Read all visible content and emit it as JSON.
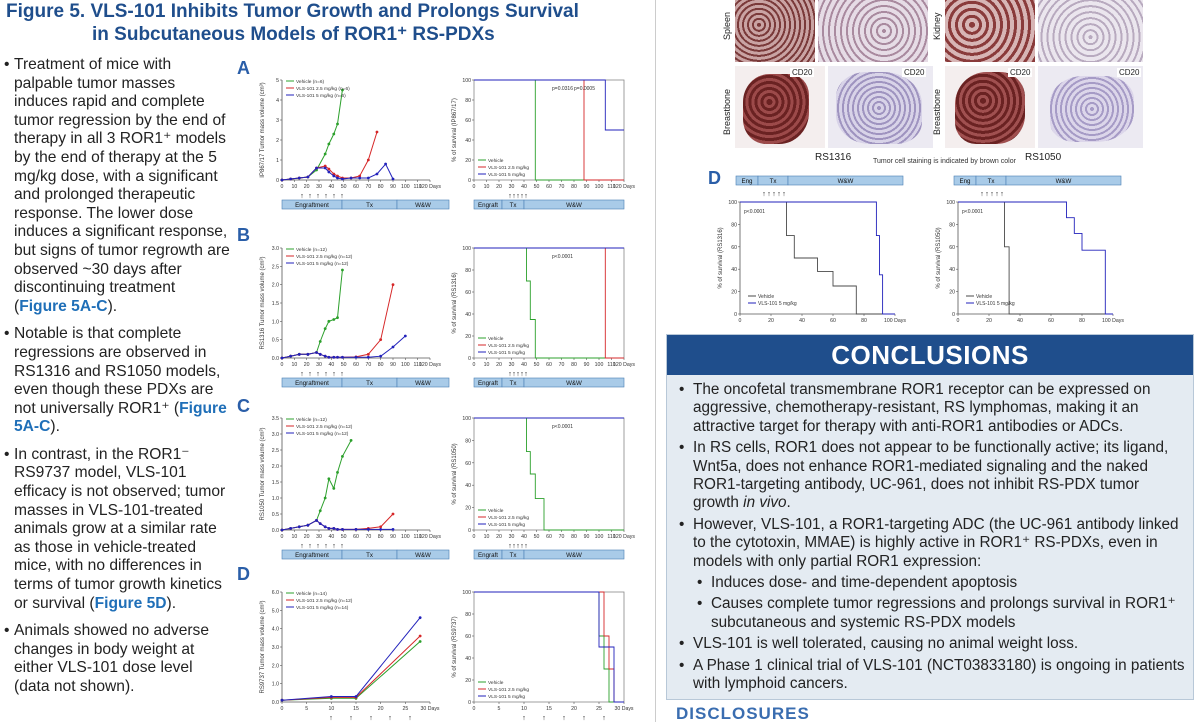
{
  "title": {
    "line1": "Figure 5. VLS-101 Inhibits Tumor Growth and Prolongs Survival",
    "line2": "in Subcutaneous Models of ROR1⁺ RS-PDXs"
  },
  "bullets": [
    {
      "text": "Treatment of mice with palpable tumor masses induces rapid and complete tumor regression by the end of therapy in all 3 ROR1⁺ models by the end of therapy at the 5 mg/kg dose, with a significant and prolonged therapeutic response. The lower dose induces a significant response, but signs of tumor regrowth are observed ~30 days after discontinuing treatment (",
      "ref": "Figure 5A-C",
      "tail": ")."
    },
    {
      "text": "Notable is that complete regressions are observed in RS1316 and RS1050 models, even though these PDXs are not universally ROR1⁺ (",
      "ref": "Figure 5A-C",
      "tail": ")."
    },
    {
      "text": "In contrast, in the ROR1⁻ RS9737 model, VLS-101 efficacy is not observed; tumor masses in VLS-101-treated animals grow at a similar rate as those in vehicle-treated mice, with no differences in terms of tumor growth kinetics or survival (",
      "ref": "Figure 5D",
      "tail": ")."
    },
    {
      "text": "Animals showed no adverse changes in body weight at either VLS-101 dose level (data not shown).",
      "ref": "",
      "tail": ""
    }
  ],
  "panels": {
    "A": {
      "letter": "A",
      "ylabel": "IP867/17 Tumor mass volume (cm³)",
      "surv_ylabel": "% of survival (IP867/17)",
      "legend": [
        "Vehicle (n=6)",
        "VLS-101 2.5 mg/kg (n=6)",
        "VLS-101 5 mg/kg (n=6)"
      ],
      "yticks": [
        "0",
        "1",
        "2",
        "3",
        "4",
        "5"
      ],
      "pvals": [
        "p=0.0316",
        "p=0.0005"
      ],
      "phases": [
        "Engraftment",
        "Tx",
        "W&W"
      ],
      "surv_phases": [
        "Engraft",
        "Tx",
        "W&W"
      ]
    },
    "B": {
      "letter": "B",
      "ylabel": "RS1316 Tumor mass volume (cm³)",
      "surv_ylabel": "% of survival (RS1316)",
      "legend": [
        "Vehicle (n=12)",
        "VLS-101 2.5 mg/kg (n=12)",
        "VLS-101 5 mg/kg (n=12)"
      ],
      "yticks": [
        "0.0",
        "0.5",
        "1.0",
        "1.5",
        "2.0",
        "2.5",
        "3.0"
      ],
      "pvals": [
        "p<0.0001"
      ],
      "phases": [
        "Engraftment",
        "Tx",
        "W&W"
      ],
      "surv_phases": [
        "Engraft",
        "Tx",
        "W&W"
      ]
    },
    "C": {
      "letter": "C",
      "ylabel": "RS1050 Tumor mass volume (cm³)",
      "surv_ylabel": "% of survival (RS1050)",
      "legend": [
        "Vehicle (n=12)",
        "VLS-101 2.5 mg/kg (n=12)",
        "VLS-101 5 mg/kg (n=12)"
      ],
      "yticks": [
        "0.0",
        "0.5",
        "1.0",
        "1.5",
        "2.0",
        "2.5",
        "3.0",
        "3.5"
      ],
      "pvals": [
        "p<0.0001"
      ],
      "phases": [
        "Engraftment",
        "Tx",
        "W&W"
      ],
      "surv_phases": [
        "Engraft",
        "Tx",
        "W&W"
      ]
    },
    "D": {
      "letter": "D",
      "ylabel": "RS9737 Tumor mass volume (cm³)",
      "surv_ylabel": "% of survival (RS9737)",
      "legend": [
        "Vehicle (n=14)",
        "VLS-101 2.5 mg/kg (n=12)",
        "VLS-101 5 mg/kg (n=14)"
      ],
      "yticks": [
        "0.0",
        "1.0",
        "2.0",
        "3.0",
        "4.0",
        "5.0",
        "6.0"
      ],
      "pvals": []
    }
  },
  "surv_legend": [
    "Vehicle",
    "VLS-101 2.5 mg/kg",
    "VLS-101 5 mg/kg"
  ],
  "xticks_main": [
    "0",
    "10",
    "20",
    "30",
    "40",
    "50",
    "60",
    "70",
    "80",
    "90",
    "100",
    "110",
    "120 Days"
  ],
  "xticks_d": [
    "0",
    "5",
    "10",
    "15",
    "20",
    "25",
    "30 Days"
  ],
  "ihc": {
    "tissues": [
      "Spleen",
      "Kidney",
      "Breastbone",
      "Breastbone"
    ],
    "marker": "CD20",
    "models": [
      "RS1316",
      "RS1050"
    ],
    "caption": "Tumor cell staining is indicated by brown color"
  },
  "systemic": {
    "letter": "D",
    "phases": [
      "Eng",
      "Tx",
      "W&W"
    ],
    "ylabels": [
      "% of survival (RS1316)",
      "% of survival (RS1050)"
    ],
    "pval": "p<0.0001",
    "legend": [
      "Vehicle",
      "VLS-101 5 mg/kg"
    ],
    "xticks": [
      "0",
      "20",
      "40",
      "60",
      "80",
      "100 Days"
    ],
    "yticks": [
      "0",
      "20",
      "40",
      "60",
      "80",
      "100"
    ]
  },
  "conclusions": {
    "heading": "CONCLUSIONS",
    "items": [
      {
        "text": "The oncofetal transmembrane ROR1 receptor can be expressed on aggressive, chemotherapy-resistant, RS lymphomas, making it an attractive target for therapy with anti-ROR1 antibodies or ADCs.",
        "sub": false
      },
      {
        "text": "In RS cells, ROR1 does not appear to be functionally active; its ligand, Wnt5a, does not enhance ROR1-mediated signaling and the naked ROR1-targeting antibody, UC-961, does not inhibit RS-PDX tumor growth ",
        "em": "in vivo",
        "tail": ".",
        "sub": false
      },
      {
        "text": "However, VLS-101, a ROR1-targeting ADC (the UC-961 antibody linked to the cytotoxin, MMAE) is highly active in ROR1⁺ RS-PDXs, even in models with only partial ROR1 expression:",
        "sub": false
      },
      {
        "text": "Induces dose- and time-dependent apoptosis",
        "sub": true
      },
      {
        "text": "Causes complete tumor regressions and prolongs survival in ROR1⁺ subcutaneous and systemic RS-PDX models",
        "sub": true
      },
      {
        "text": "VLS-101 is well tolerated, causing no animal weight loss.",
        "sub": false
      },
      {
        "text": "A Phase 1 clinical trial of VLS-101 (NCT03833180) is ongoing in patients with lymphoid cancers.",
        "sub": false
      }
    ]
  },
  "disclosures": "DISCLOSURES",
  "colors": {
    "vehicle": "#2ca02c",
    "low": "#d62728",
    "high": "#2222bb",
    "title": "#1f4e8c",
    "phase": "#a9cbe8"
  },
  "chart_data": [
    {
      "type": "line",
      "title": "",
      "ylabel": "IP867/17 Tumor mass volume (cm³)",
      "xlabel": "Days",
      "ylim": [
        0,
        5
      ],
      "xlim": [
        0,
        120
      ],
      "series": [
        {
          "name": "Vehicle (n=6)",
          "x": [
            0,
            7,
            14,
            21,
            28,
            35,
            38,
            42,
            45,
            49
          ],
          "y": [
            0,
            0.05,
            0.1,
            0.15,
            0.5,
            1.3,
            1.8,
            2.3,
            2.8,
            4.5
          ]
        },
        {
          "name": "VLS-101 2.5 mg/kg (n=6)",
          "x": [
            0,
            7,
            14,
            21,
            28,
            35,
            38,
            42,
            45,
            49,
            56,
            63,
            70,
            77
          ],
          "y": [
            0,
            0.05,
            0.1,
            0.15,
            0.6,
            0.7,
            0.55,
            0.3,
            0.2,
            0.1,
            0.1,
            0.2,
            1.0,
            2.4
          ]
        },
        {
          "name": "VLS-101 5 mg/kg (n=6)",
          "x": [
            0,
            7,
            14,
            21,
            28,
            35,
            38,
            42,
            45,
            49,
            56,
            63,
            70,
            77,
            84,
            90
          ],
          "y": [
            0,
            0.05,
            0.1,
            0.15,
            0.6,
            0.6,
            0.4,
            0.2,
            0.1,
            0.05,
            0.1,
            0.1,
            0.1,
            0.3,
            0.8,
            0.05
          ]
        }
      ]
    },
    {
      "type": "line",
      "title": "",
      "ylabel": "% of survival (IP867/17)",
      "xlabel": "Days",
      "ylim": [
        0,
        100
      ],
      "xlim": [
        0,
        120
      ],
      "series": [
        {
          "name": "Vehicle",
          "x": [
            0,
            49,
            49,
            120
          ],
          "y": [
            100,
            100,
            0,
            0
          ]
        },
        {
          "name": "VLS-101 2.5 mg/kg",
          "x": [
            0,
            88,
            88,
            120
          ],
          "y": [
            100,
            100,
            0,
            0
          ]
        },
        {
          "name": "VLS-101 5 mg/kg",
          "x": [
            0,
            105,
            105,
            120
          ],
          "y": [
            100,
            100,
            50,
            50
          ]
        }
      ]
    },
    {
      "type": "line",
      "title": "",
      "ylabel": "RS1316 Tumor mass volume (cm³)",
      "xlabel": "Days",
      "ylim": [
        0,
        3
      ],
      "xlim": [
        0,
        120
      ],
      "series": [
        {
          "name": "Vehicle (n=12)",
          "x": [
            0,
            7,
            14,
            21,
            28,
            31,
            35,
            38,
            42,
            45,
            49
          ],
          "y": [
            0,
            0.05,
            0.1,
            0.1,
            0.15,
            0.45,
            0.8,
            1.0,
            1.05,
            1.1,
            2.4
          ]
        },
        {
          "name": "VLS-101 2.5 mg/kg (n=12)",
          "x": [
            0,
            7,
            14,
            21,
            28,
            31,
            35,
            38,
            42,
            45,
            49,
            60,
            70,
            80,
            90
          ],
          "y": [
            0,
            0.05,
            0.1,
            0.1,
            0.15,
            0.1,
            0.05,
            0.02,
            0.02,
            0.02,
            0.02,
            0.03,
            0.1,
            0.5,
            2.0
          ]
        },
        {
          "name": "VLS-101 5 mg/kg (n=12)",
          "x": [
            0,
            7,
            14,
            21,
            28,
            31,
            35,
            38,
            42,
            45,
            49,
            60,
            70,
            80,
            90,
            100
          ],
          "y": [
            0,
            0.05,
            0.1,
            0.1,
            0.15,
            0.1,
            0.05,
            0.02,
            0.02,
            0.02,
            0.02,
            0.02,
            0.02,
            0.05,
            0.3,
            0.6
          ]
        }
      ]
    },
    {
      "type": "line",
      "title": "",
      "ylabel": "% of survival (RS1316)",
      "xlabel": "Days",
      "ylim": [
        0,
        100
      ],
      "xlim": [
        0,
        120
      ],
      "series": [
        {
          "name": "Vehicle",
          "x": [
            0,
            42,
            42,
            45,
            45,
            49,
            49,
            120
          ],
          "y": [
            100,
            100,
            70,
            70,
            35,
            35,
            0,
            0
          ]
        },
        {
          "name": "VLS-101 2.5 mg/kg",
          "x": [
            0,
            105,
            105,
            120
          ],
          "y": [
            100,
            100,
            0,
            0
          ]
        },
        {
          "name": "VLS-101 5 mg/kg",
          "x": [
            0,
            120
          ],
          "y": [
            100,
            100
          ]
        }
      ]
    },
    {
      "type": "line",
      "title": "",
      "ylabel": "RS1050 Tumor mass volume (cm³)",
      "xlabel": "Days",
      "ylim": [
        0,
        3.5
      ],
      "xlim": [
        0,
        120
      ],
      "series": [
        {
          "name": "Vehicle (n=12)",
          "x": [
            0,
            7,
            14,
            21,
            28,
            31,
            35,
            38,
            42,
            45,
            49,
            56
          ],
          "y": [
            0,
            0.05,
            0.1,
            0.15,
            0.3,
            0.6,
            1.0,
            1.6,
            1.3,
            1.8,
            2.3,
            2.8
          ]
        },
        {
          "name": "VLS-101 2.5 mg/kg (n=12)",
          "x": [
            0,
            7,
            14,
            21,
            28,
            31,
            35,
            38,
            42,
            45,
            49,
            60,
            70,
            80,
            90
          ],
          "y": [
            0,
            0.05,
            0.1,
            0.15,
            0.3,
            0.2,
            0.1,
            0.05,
            0.05,
            0.02,
            0.02,
            0.02,
            0.05,
            0.1,
            0.5
          ]
        },
        {
          "name": "VLS-101 5 mg/kg (n=12)",
          "x": [
            0,
            7,
            14,
            21,
            28,
            31,
            35,
            38,
            42,
            45,
            49,
            60,
            70,
            80,
            90
          ],
          "y": [
            0,
            0.05,
            0.1,
            0.15,
            0.3,
            0.2,
            0.1,
            0.05,
            0.05,
            0.02,
            0.02,
            0.02,
            0.02,
            0.02,
            0.02
          ]
        }
      ]
    },
    {
      "type": "line",
      "title": "",
      "ylabel": "% of survival (RS1050)",
      "xlabel": "Days",
      "ylim": [
        0,
        100
      ],
      "xlim": [
        0,
        120
      ],
      "series": [
        {
          "name": "Vehicle",
          "x": [
            0,
            42,
            42,
            45,
            45,
            49,
            49,
            56,
            56,
            120
          ],
          "y": [
            100,
            100,
            70,
            70,
            50,
            50,
            28,
            28,
            0,
            0
          ]
        },
        {
          "name": "VLS-101 2.5 mg/kg",
          "x": [
            0,
            120
          ],
          "y": [
            100,
            100
          ]
        },
        {
          "name": "VLS-101 5 mg/kg",
          "x": [
            0,
            120
          ],
          "y": [
            100,
            100
          ]
        }
      ]
    },
    {
      "type": "line",
      "title": "",
      "ylabel": "RS9737 Tumor mass volume (cm³)",
      "xlabel": "Days",
      "ylim": [
        0,
        6
      ],
      "xlim": [
        0,
        30
      ],
      "series": [
        {
          "name": "Vehicle (n=14)",
          "x": [
            0,
            10,
            15,
            28
          ],
          "y": [
            0.1,
            0.2,
            0.2,
            3.3
          ]
        },
        {
          "name": "VLS-101 2.5 mg/kg (n=12)",
          "x": [
            0,
            10,
            15,
            28
          ],
          "y": [
            0.1,
            0.25,
            0.25,
            3.6
          ]
        },
        {
          "name": "VLS-101 5 mg/kg (n=14)",
          "x": [
            0,
            10,
            15,
            28
          ],
          "y": [
            0.1,
            0.3,
            0.3,
            4.6
          ]
        }
      ]
    },
    {
      "type": "line",
      "title": "",
      "ylabel": "% of survival (RS9737)",
      "xlabel": "Days",
      "ylim": [
        0,
        100
      ],
      "xlim": [
        0,
        30
      ],
      "series": [
        {
          "name": "Vehicle",
          "x": [
            0,
            25,
            25,
            26,
            26,
            27,
            27,
            30
          ],
          "y": [
            100,
            100,
            60,
            60,
            30,
            30,
            0,
            0
          ]
        },
        {
          "name": "VLS-101 2.5 mg/kg",
          "x": [
            0,
            26,
            26,
            27,
            27,
            28,
            28,
            30
          ],
          "y": [
            100,
            100,
            60,
            60,
            30,
            30,
            0,
            0
          ]
        },
        {
          "name": "VLS-101 5 mg/kg",
          "x": [
            0,
            25,
            25,
            28,
            28,
            30
          ],
          "y": [
            100,
            100,
            50,
            50,
            0,
            0
          ]
        }
      ]
    },
    {
      "type": "line",
      "title": "",
      "ylabel": "% of survival (RS1316)",
      "xlabel": "Days",
      "ylim": [
        0,
        100
      ],
      "xlim": [
        0,
        100
      ],
      "series": [
        {
          "name": "Vehicle",
          "x": [
            0,
            30,
            30,
            35,
            35,
            50,
            50,
            60,
            60,
            75,
            75,
            100
          ],
          "y": [
            100,
            100,
            70,
            70,
            50,
            50,
            38,
            38,
            25,
            25,
            0,
            0
          ]
        },
        {
          "name": "VLS-101 5 mg/kg",
          "x": [
            0,
            88,
            88,
            90,
            90,
            92,
            92,
            100
          ],
          "y": [
            100,
            100,
            70,
            70,
            35,
            35,
            0,
            0
          ]
        }
      ]
    },
    {
      "type": "line",
      "title": "",
      "ylabel": "% of survival (RS1050)",
      "xlabel": "Days",
      "ylim": [
        0,
        100
      ],
      "xlim": [
        0,
        100
      ],
      "series": [
        {
          "name": "Vehicle",
          "x": [
            0,
            30,
            30,
            33,
            33,
            100
          ],
          "y": [
            100,
            100,
            60,
            60,
            0,
            0
          ]
        },
        {
          "name": "VLS-101 5 mg/kg",
          "x": [
            0,
            70,
            70,
            75,
            75,
            80,
            80,
            95,
            95,
            100
          ],
          "y": [
            100,
            100,
            86,
            86,
            72,
            72,
            57,
            57,
            0,
            0
          ]
        }
      ]
    }
  ]
}
